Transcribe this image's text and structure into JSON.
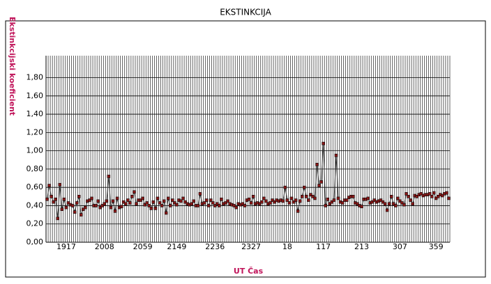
{
  "chart_data": {
    "type": "line",
    "title": "EKSTINKCIJA",
    "y_label": "Ekstinkcijski koeficient",
    "x_label": "UT Čas",
    "categories": [
      null,
      null,
      null,
      null,
      null,
      null,
      null,
      null,
      null,
      "1917",
      null,
      null,
      null,
      null,
      null,
      null,
      null,
      null,
      null,
      null,
      null,
      null,
      null,
      null,
      null,
      null,
      null,
      "2008",
      null,
      null,
      null,
      null,
      null,
      null,
      null,
      null,
      null,
      null,
      null,
      null,
      null,
      null,
      null,
      null,
      null,
      "2059",
      null,
      null,
      null,
      null,
      null,
      null,
      null,
      null,
      null,
      null,
      null,
      null,
      null,
      null,
      null,
      "2149",
      null,
      null,
      null,
      null,
      null,
      null,
      null,
      null,
      null,
      null,
      null,
      null,
      null,
      null,
      null,
      null,
      null,
      "2236",
      null,
      null,
      null,
      null,
      null,
      null,
      null,
      null,
      null,
      null,
      null,
      null,
      null,
      null,
      null,
      null,
      "2327",
      null,
      null,
      null,
      null,
      null,
      null,
      null,
      null,
      null,
      null,
      null,
      null,
      null,
      null,
      null,
      null,
      "18",
      null,
      null,
      null,
      null,
      null,
      null,
      null,
      null,
      null,
      null,
      null,
      null,
      null,
      null,
      null,
      null,
      "117",
      null,
      null,
      null,
      null,
      null,
      null,
      null,
      null,
      null,
      null,
      null,
      null,
      null,
      null,
      null,
      null,
      null,
      "213",
      null,
      null,
      null,
      null,
      null,
      null,
      null,
      null,
      null,
      null,
      null,
      null,
      null,
      null,
      null,
      null,
      null,
      "307",
      null,
      null,
      null,
      null,
      null,
      null,
      null,
      null,
      null,
      null,
      null,
      null,
      null,
      null,
      null,
      null,
      "359",
      null,
      null,
      null,
      null,
      null,
      null
    ],
    "series": [
      {
        "color": "#8b1a1a",
        "values": [
          0.47,
          0.62,
          0.5,
          0.44,
          0.47,
          0.26,
          0.63,
          0.36,
          0.47,
          0.38,
          0.43,
          0.41,
          0.4,
          0.33,
          0.43,
          0.5,
          0.3,
          0.36,
          0.38,
          0.45,
          0.46,
          0.48,
          0.4,
          0.4,
          0.45,
          0.38,
          0.4,
          0.42,
          0.45,
          0.72,
          0.38,
          0.45,
          0.34,
          0.48,
          0.38,
          0.39,
          0.44,
          0.42,
          0.46,
          0.43,
          0.5,
          0.55,
          0.42,
          0.46,
          0.46,
          0.48,
          0.41,
          0.43,
          0.4,
          0.37,
          0.44,
          0.37,
          0.48,
          0.43,
          0.4,
          0.45,
          0.32,
          0.48,
          0.4,
          0.46,
          0.43,
          0.41,
          0.46,
          0.45,
          0.48,
          0.44,
          0.42,
          0.41,
          0.42,
          0.45,
          0.4,
          0.4,
          0.53,
          0.42,
          0.43,
          0.46,
          0.4,
          0.46,
          0.43,
          0.4,
          0.42,
          0.4,
          0.47,
          0.42,
          0.43,
          0.45,
          0.42,
          0.41,
          0.4,
          0.38,
          0.42,
          0.41,
          0.42,
          0.4,
          0.46,
          0.47,
          0.43,
          0.5,
          0.42,
          0.43,
          0.42,
          0.44,
          0.48,
          0.45,
          0.42,
          0.43,
          0.46,
          0.44,
          0.46,
          0.45,
          0.46,
          0.45,
          0.6,
          0.46,
          0.43,
          0.48,
          0.44,
          0.46,
          0.34,
          0.45,
          0.5,
          0.6,
          0.5,
          0.46,
          0.52,
          0.5,
          0.48,
          0.85,
          0.62,
          0.66,
          1.08,
          0.4,
          0.47,
          0.42,
          0.44,
          0.46,
          0.95,
          0.48,
          0.44,
          0.43,
          0.46,
          0.46,
          0.49,
          0.5,
          0.5,
          0.43,
          0.42,
          0.4,
          0.39,
          0.47,
          0.47,
          0.48,
          0.43,
          0.44,
          0.46,
          0.44,
          0.45,
          0.46,
          0.44,
          0.42,
          0.35,
          0.42,
          0.5,
          0.42,
          0.4,
          0.48,
          0.45,
          0.43,
          0.41,
          0.53,
          0.5,
          0.46,
          0.42,
          0.51,
          0.5,
          0.52,
          0.53,
          0.51,
          0.52,
          0.52,
          0.53,
          0.5,
          0.54,
          0.48,
          0.5,
          0.52,
          0.51,
          0.53,
          0.54,
          0.48
        ]
      }
    ],
    "ylim": [
      0,
      2.04
    ],
    "yticks": [
      {
        "value": 0,
        "label": "0,00"
      },
      {
        "value": 0.2,
        "label": "0,20"
      },
      {
        "value": 0.4,
        "label": "0,40"
      },
      {
        "value": 0.6,
        "label": "0,60"
      },
      {
        "value": 0.8,
        "label": "0,80"
      },
      {
        "value": 1.0,
        "label": "1,00"
      },
      {
        "value": 1.2,
        "label": "1,20"
      },
      {
        "value": 1.4,
        "label": "1,40"
      },
      {
        "value": 1.6,
        "label": "1,60"
      },
      {
        "value": 1.8,
        "label": "1,80"
      }
    ],
    "grid": true
  }
}
